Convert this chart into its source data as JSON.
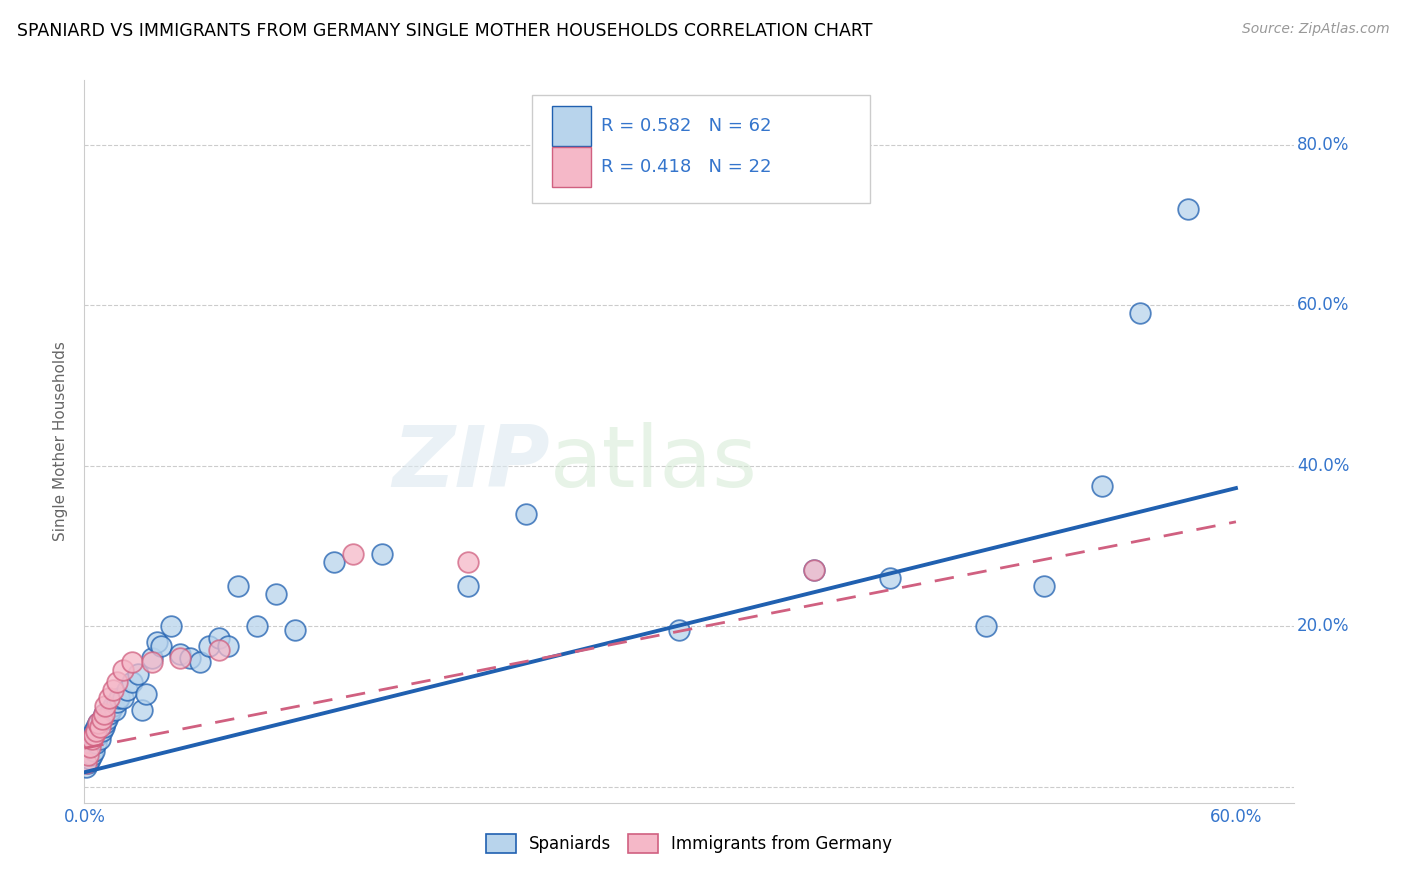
{
  "title": "SPANIARD VS IMMIGRANTS FROM GERMANY SINGLE MOTHER HOUSEHOLDS CORRELATION CHART",
  "source": "Source: ZipAtlas.com",
  "ylabel": "Single Mother Households",
  "xlim": [
    0.0,
    0.63
  ],
  "ylim": [
    -0.02,
    0.88
  ],
  "blue_R": 0.582,
  "blue_N": 62,
  "pink_R": 0.418,
  "pink_N": 22,
  "blue_color": "#b8d4ec",
  "pink_color": "#f5b8c8",
  "line_blue": "#2060b0",
  "line_pink": "#d06080",
  "legend_text_color": "#3575cc",
  "blue_line_start_y": 0.018,
  "blue_line_end_y": 0.372,
  "pink_line_start_y": 0.048,
  "pink_line_end_y": 0.33,
  "blue_scatter_x": [
    0.001,
    0.002,
    0.002,
    0.003,
    0.003,
    0.003,
    0.004,
    0.004,
    0.004,
    0.005,
    0.005,
    0.005,
    0.006,
    0.006,
    0.007,
    0.007,
    0.008,
    0.008,
    0.009,
    0.009,
    0.01,
    0.01,
    0.011,
    0.012,
    0.013,
    0.014,
    0.015,
    0.016,
    0.017,
    0.018,
    0.02,
    0.022,
    0.025,
    0.028,
    0.03,
    0.032,
    0.035,
    0.038,
    0.04,
    0.045,
    0.05,
    0.055,
    0.06,
    0.065,
    0.07,
    0.075,
    0.08,
    0.09,
    0.1,
    0.11,
    0.13,
    0.155,
    0.2,
    0.23,
    0.31,
    0.38,
    0.42,
    0.47,
    0.5,
    0.53,
    0.55,
    0.575
  ],
  "blue_scatter_y": [
    0.025,
    0.03,
    0.045,
    0.035,
    0.05,
    0.06,
    0.04,
    0.055,
    0.065,
    0.045,
    0.06,
    0.07,
    0.055,
    0.075,
    0.065,
    0.08,
    0.06,
    0.075,
    0.07,
    0.085,
    0.075,
    0.09,
    0.08,
    0.085,
    0.09,
    0.095,
    0.1,
    0.095,
    0.105,
    0.11,
    0.11,
    0.12,
    0.13,
    0.14,
    0.095,
    0.115,
    0.16,
    0.18,
    0.175,
    0.2,
    0.165,
    0.16,
    0.155,
    0.175,
    0.185,
    0.175,
    0.25,
    0.2,
    0.24,
    0.195,
    0.28,
    0.29,
    0.25,
    0.34,
    0.195,
    0.27,
    0.26,
    0.2,
    0.25,
    0.375,
    0.59,
    0.72
  ],
  "pink_scatter_x": [
    0.001,
    0.002,
    0.003,
    0.004,
    0.005,
    0.006,
    0.007,
    0.008,
    0.009,
    0.01,
    0.011,
    0.013,
    0.015,
    0.017,
    0.02,
    0.025,
    0.035,
    0.05,
    0.07,
    0.14,
    0.2,
    0.38
  ],
  "pink_scatter_y": [
    0.03,
    0.04,
    0.05,
    0.06,
    0.065,
    0.07,
    0.08,
    0.075,
    0.085,
    0.09,
    0.1,
    0.11,
    0.12,
    0.13,
    0.145,
    0.155,
    0.155,
    0.16,
    0.17,
    0.29,
    0.28,
    0.27
  ]
}
